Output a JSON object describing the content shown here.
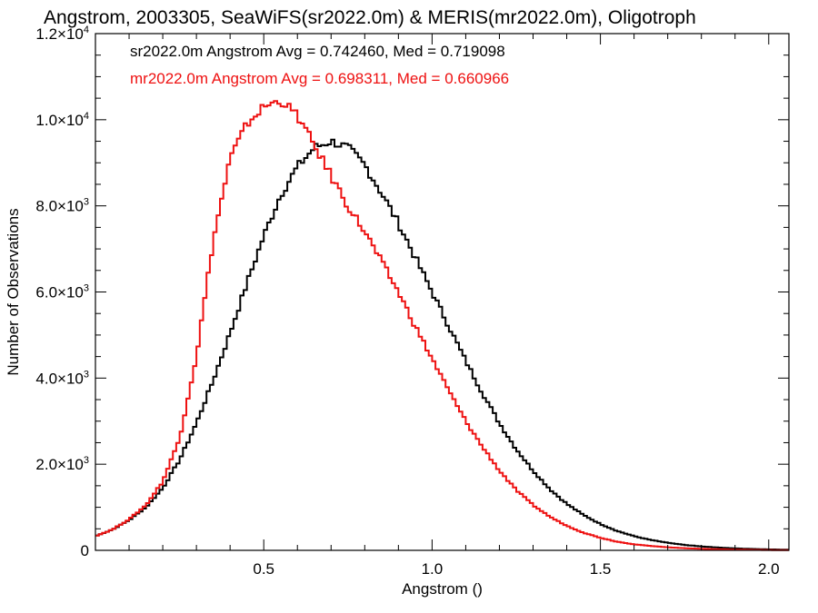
{
  "chart_data": {
    "type": "line",
    "step": true,
    "title": "Angstrom, 2003305, SeaWiFS(sr2022.0m) & MERIS(mr2022.0m), Oligotroph",
    "xlabel": "Angstrom ()",
    "ylabel": "Number of Observations",
    "xlim": [
      0.0,
      2.06
    ],
    "ylim": [
      0,
      12000
    ],
    "grid": false,
    "x_ticks": [
      {
        "value": 0.5,
        "label": "0.5"
      },
      {
        "value": 1.0,
        "label": "1.0"
      },
      {
        "value": 1.5,
        "label": "1.5"
      },
      {
        "value": 2.0,
        "label": "2.0"
      }
    ],
    "y_ticks": [
      {
        "value": 0,
        "mant": "0",
        "exp": ""
      },
      {
        "value": 2000,
        "mant": "2.0×10",
        "exp": "3"
      },
      {
        "value": 4000,
        "mant": "4.0×10",
        "exp": "3"
      },
      {
        "value": 6000,
        "mant": "6.0×10",
        "exp": "3"
      },
      {
        "value": 8000,
        "mant": "8.0×10",
        "exp": "3"
      },
      {
        "value": 10000,
        "mant": "1.0×10",
        "exp": "4"
      },
      {
        "value": 12000,
        "mant": "1.2×10",
        "exp": "4"
      }
    ],
    "annotations": [
      {
        "text": "sr2022.0m Angstrom Avg = 0.742460, Med = 0.719098",
        "color": "#000000"
      },
      {
        "text": "mr2022.0m Angstrom Avg = 0.698311, Med = 0.660966",
        "color": "#ee1111"
      }
    ],
    "series": [
      {
        "color": "#000000",
        "points": [
          [
            0.0,
            330
          ],
          [
            0.05,
            480
          ],
          [
            0.1,
            700
          ],
          [
            0.15,
            1000
          ],
          [
            0.2,
            1450
          ],
          [
            0.25,
            2100
          ],
          [
            0.3,
            2950
          ],
          [
            0.35,
            3950
          ],
          [
            0.4,
            5050
          ],
          [
            0.45,
            6200
          ],
          [
            0.5,
            7300
          ],
          [
            0.55,
            8250
          ],
          [
            0.6,
            8900
          ],
          [
            0.65,
            9350
          ],
          [
            0.7,
            9500
          ],
          [
            0.75,
            9350
          ],
          [
            0.8,
            8950
          ],
          [
            0.85,
            8300
          ],
          [
            0.9,
            7600
          ],
          [
            0.95,
            6800
          ],
          [
            1.0,
            6000
          ],
          [
            1.05,
            5200
          ],
          [
            1.1,
            4400
          ],
          [
            1.15,
            3650
          ],
          [
            1.2,
            2950
          ],
          [
            1.25,
            2350
          ],
          [
            1.3,
            1850
          ],
          [
            1.35,
            1420
          ],
          [
            1.4,
            1080
          ],
          [
            1.45,
            820
          ],
          [
            1.5,
            610
          ],
          [
            1.55,
            450
          ],
          [
            1.6,
            330
          ],
          [
            1.65,
            240
          ],
          [
            1.7,
            175
          ],
          [
            1.75,
            125
          ],
          [
            1.8,
            90
          ],
          [
            1.85,
            65
          ],
          [
            1.9,
            45
          ],
          [
            1.95,
            32
          ],
          [
            2.0,
            22
          ],
          [
            2.06,
            15
          ]
        ]
      },
      {
        "color": "#ee1111",
        "points": [
          [
            0.0,
            330
          ],
          [
            0.05,
            480
          ],
          [
            0.1,
            720
          ],
          [
            0.15,
            1050
          ],
          [
            0.2,
            1600
          ],
          [
            0.25,
            2600
          ],
          [
            0.3,
            4500
          ],
          [
            0.35,
            7200
          ],
          [
            0.4,
            9100
          ],
          [
            0.45,
            9900
          ],
          [
            0.5,
            10300
          ],
          [
            0.55,
            10450
          ],
          [
            0.6,
            10100
          ],
          [
            0.65,
            9400
          ],
          [
            0.7,
            8700
          ],
          [
            0.75,
            8000
          ],
          [
            0.8,
            7400
          ],
          [
            0.85,
            6700
          ],
          [
            0.9,
            6000
          ],
          [
            0.95,
            5200
          ],
          [
            1.0,
            4450
          ],
          [
            1.05,
            3700
          ],
          [
            1.1,
            3000
          ],
          [
            1.15,
            2400
          ],
          [
            1.2,
            1850
          ],
          [
            1.25,
            1400
          ],
          [
            1.3,
            1050
          ],
          [
            1.35,
            780
          ],
          [
            1.4,
            570
          ],
          [
            1.45,
            410
          ],
          [
            1.5,
            290
          ],
          [
            1.55,
            200
          ],
          [
            1.6,
            140
          ],
          [
            1.65,
            100
          ],
          [
            1.7,
            70
          ],
          [
            1.75,
            50
          ],
          [
            1.8,
            35
          ],
          [
            1.85,
            25
          ],
          [
            1.9,
            18
          ],
          [
            1.95,
            12
          ],
          [
            2.0,
            8
          ],
          [
            2.06,
            5
          ]
        ]
      }
    ]
  }
}
